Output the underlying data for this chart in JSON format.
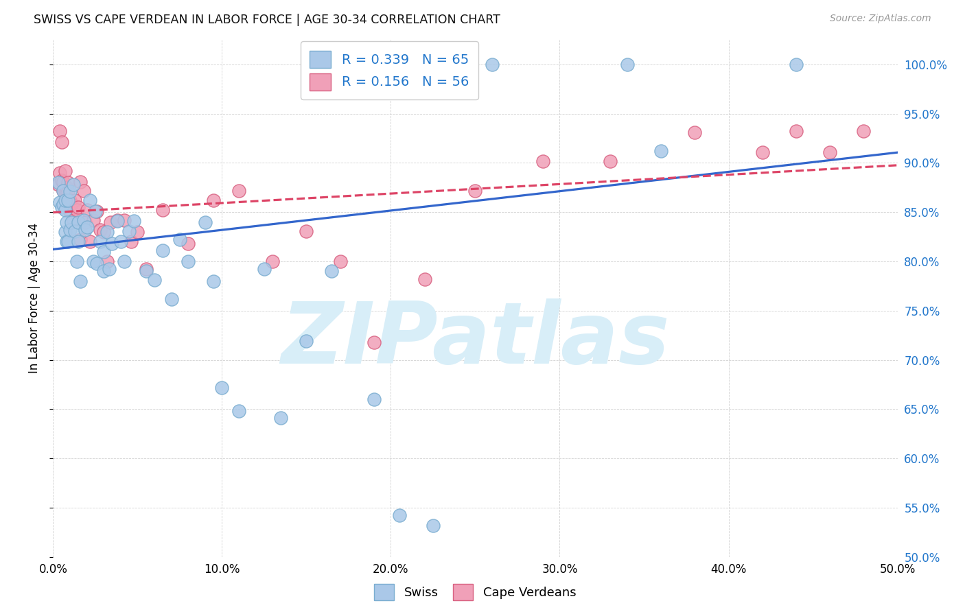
{
  "title": "SWISS VS CAPE VERDEAN IN LABOR FORCE | AGE 30-34 CORRELATION CHART",
  "source": "Source: ZipAtlas.com",
  "ylabel": "In Labor Force | Age 30-34",
  "xlim": [
    0.0,
    0.5
  ],
  "ylim": [
    0.505,
    1.025
  ],
  "xtick_labels": [
    "0.0%",
    "10.0%",
    "20.0%",
    "30.0%",
    "40.0%",
    "50.0%"
  ],
  "xtick_vals": [
    0.0,
    0.1,
    0.2,
    0.3,
    0.4,
    0.5
  ],
  "ytick_right_labels": [
    "",
    "55.0%",
    "",
    "65.0%",
    "",
    "75.0%",
    "",
    "85.0%",
    "",
    "95.0%",
    "100.0%"
  ],
  "ytick_vals": [
    0.5,
    0.55,
    0.6,
    0.65,
    0.7,
    0.75,
    0.8,
    0.85,
    0.9,
    0.95,
    1.0
  ],
  "ytick_all_labels": [
    "50.0%",
    "55.0%",
    "60.0%",
    "65.0%",
    "70.0%",
    "75.0%",
    "80.0%",
    "85.0%",
    "90.0%",
    "95.0%",
    "100.0%"
  ],
  "swiss_R": 0.339,
  "swiss_N": 65,
  "cape_R": 0.156,
  "cape_N": 56,
  "swiss_face": "#aac8e8",
  "swiss_edge": "#7aadd0",
  "cape_face": "#f0a0b8",
  "cape_edge": "#d86080",
  "line_swiss": "#3366cc",
  "line_cape": "#dd4466",
  "watermark_color": "#d8eef8",
  "swiss_x": [
    0.003,
    0.004,
    0.005,
    0.006,
    0.006,
    0.007,
    0.007,
    0.007,
    0.008,
    0.008,
    0.009,
    0.009,
    0.01,
    0.01,
    0.011,
    0.012,
    0.013,
    0.014,
    0.015,
    0.015,
    0.016,
    0.018,
    0.019,
    0.02,
    0.022,
    0.024,
    0.025,
    0.026,
    0.028,
    0.03,
    0.03,
    0.032,
    0.033,
    0.035,
    0.038,
    0.04,
    0.042,
    0.045,
    0.048,
    0.055,
    0.06,
    0.065,
    0.07,
    0.075,
    0.08,
    0.09,
    0.095,
    0.1,
    0.11,
    0.125,
    0.135,
    0.16,
    0.18,
    0.2,
    0.22,
    0.24,
    0.26,
    0.15,
    0.165,
    0.19,
    0.205,
    0.225,
    0.34,
    0.36,
    0.44
  ],
  "swiss_y": [
    0.88,
    0.86,
    0.855,
    0.858,
    0.872,
    0.83,
    0.852,
    0.862,
    0.82,
    0.84,
    0.82,
    0.862,
    0.832,
    0.871,
    0.84,
    0.878,
    0.831,
    0.8,
    0.82,
    0.84,
    0.78,
    0.842,
    0.832,
    0.835,
    0.862,
    0.8,
    0.851,
    0.798,
    0.82,
    0.81,
    0.79,
    0.83,
    0.792,
    0.818,
    0.841,
    0.82,
    0.8,
    0.831,
    0.841,
    0.79,
    0.781,
    0.811,
    0.762,
    0.822,
    0.8,
    0.84,
    0.78,
    0.672,
    0.648,
    0.792,
    0.641,
    1.0,
    1.0,
    1.0,
    1.0,
    1.0,
    1.0,
    0.719,
    0.79,
    0.66,
    0.542,
    0.532,
    1.0,
    0.912,
    1.0
  ],
  "cape_x": [
    0.003,
    0.004,
    0.004,
    0.005,
    0.005,
    0.006,
    0.006,
    0.007,
    0.007,
    0.007,
    0.008,
    0.008,
    0.008,
    0.009,
    0.009,
    0.01,
    0.01,
    0.011,
    0.012,
    0.013,
    0.014,
    0.015,
    0.016,
    0.016,
    0.018,
    0.019,
    0.02,
    0.022,
    0.024,
    0.026,
    0.028,
    0.03,
    0.032,
    0.034,
    0.038,
    0.042,
    0.046,
    0.05,
    0.055,
    0.065,
    0.08,
    0.095,
    0.11,
    0.13,
    0.15,
    0.17,
    0.19,
    0.22,
    0.25,
    0.29,
    0.33,
    0.38,
    0.42,
    0.44,
    0.46,
    0.48
  ],
  "cape_y": [
    0.878,
    0.932,
    0.89,
    0.921,
    0.882,
    0.872,
    0.881,
    0.892,
    0.872,
    0.862,
    0.872,
    0.862,
    0.875,
    0.871,
    0.88,
    0.85,
    0.862,
    0.858,
    0.842,
    0.862,
    0.852,
    0.855,
    0.822,
    0.881,
    0.872,
    0.84,
    0.852,
    0.82,
    0.842,
    0.851,
    0.832,
    0.83,
    0.8,
    0.84,
    0.842,
    0.842,
    0.82,
    0.83,
    0.792,
    0.852,
    0.818,
    0.862,
    0.872,
    0.8,
    0.831,
    0.8,
    0.718,
    0.782,
    0.872,
    0.902,
    0.902,
    0.931,
    0.911,
    0.932,
    0.911,
    0.932
  ]
}
